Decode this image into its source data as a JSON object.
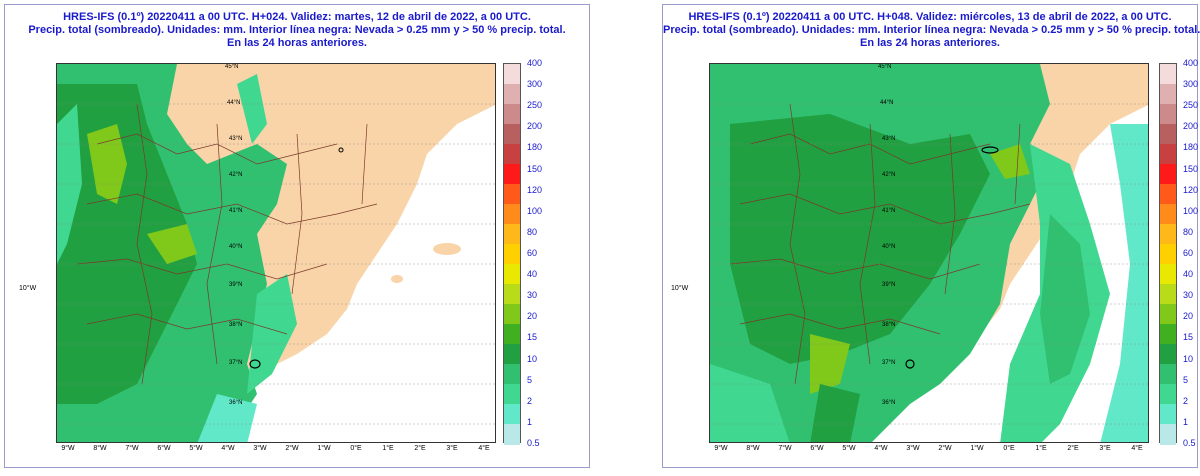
{
  "panels": [
    {
      "title_line1": "HRES-IFS (0.1º) 20220411 a 00 UTC. H+024. Validez: martes, 12 de abril de 2022, a 00 UTC.",
      "title_line2": "Precip. total (sombreado). Unidades: mm. Interior línea negra: Nevada > 0.25 mm y > 50 % precip. total.",
      "title_line3": "En las 24 horas anteriores."
    },
    {
      "title_line1": "HRES-IFS (0.1º) 20220411 a 00 UTC. H+048. Validez: miércoles, 13 de abril de 2022, a 00 UTC.",
      "title_line2": "Precip. total (sombreado). Unidades: mm. Interior línea negra: Nevada > 0.25 mm y > 50 % precip. total.",
      "title_line3": "En las 24 horas anteriores."
    }
  ],
  "y_label": "10°W",
  "x_ticks": [
    "9°W",
    "8°W",
    "7°W",
    "6°W",
    "5°W",
    "4°W",
    "3°W",
    "2°W",
    "1°W",
    "0°E",
    "1°E",
    "2°E",
    "3°E",
    "4°E"
  ],
  "lat_labels": [
    "45°N",
    "44°N",
    "43°N",
    "42°N",
    "41°N",
    "40°N",
    "39°N",
    "38°N",
    "37°N",
    "36°N"
  ],
  "legend": {
    "labels": [
      "400",
      "300",
      "250",
      "200",
      "180",
      "150",
      "120",
      "100",
      "80",
      "60",
      "40",
      "30",
      "20",
      "15",
      "10",
      "5",
      "2",
      "1",
      "0.5"
    ],
    "colors": [
      "#f4dcdc",
      "#e0b0b0",
      "#cc8a8a",
      "#b86060",
      "#c84040",
      "#ff1a1a",
      "#ff5a1a",
      "#ff8c1a",
      "#ffb81a",
      "#ffd000",
      "#e8e800",
      "#b8dc1a",
      "#80c81a",
      "#40b020",
      "#20a040",
      "#30c070",
      "#40d890",
      "#60e8c8",
      "#b8e8e8"
    ]
  },
  "colors": {
    "land": "#f8d4a8",
    "sea": "#ffffff",
    "title": "#1a1acc",
    "border": "#7a3a2a"
  }
}
